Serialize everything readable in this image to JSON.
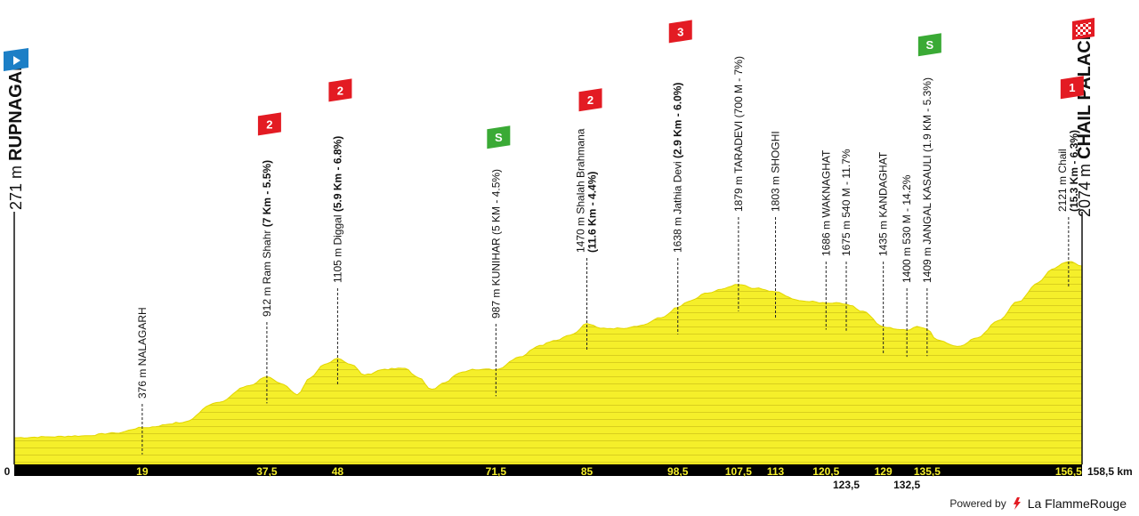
{
  "chart_data": {
    "type": "area",
    "xlim": [
      0,
      158.5
    ],
    "ylim": [
      0,
      2200
    ],
    "series": [
      {
        "x": [
          0,
          5,
          10,
          15,
          19,
          25,
          30,
          35,
          37.5,
          40,
          42,
          44,
          46,
          48,
          50,
          52,
          55,
          58,
          60,
          62,
          64,
          66,
          68,
          71.5,
          75,
          78,
          80,
          83,
          85,
          87,
          90,
          93,
          96,
          98.5,
          100,
          103,
          105,
          107.5,
          110,
          113,
          116,
          118,
          120.5,
          122,
          123.5,
          126,
          129,
          131,
          132.5,
          134,
          135.5,
          137,
          140,
          143,
          146,
          149,
          152,
          154,
          156.5,
          158.5
        ],
        "y": [
          271,
          280,
          290,
          320,
          376,
          430,
          640,
          820,
          912,
          830,
          720,
          900,
          1040,
          1105,
          1040,
          930,
          990,
          1000,
          900,
          780,
          850,
          950,
          990,
          987,
          1120,
          1240,
          1290,
          1360,
          1470,
          1420,
          1420,
          1450,
          1530,
          1638,
          1700,
          1790,
          1830,
          1879,
          1840,
          1803,
          1720,
          1700,
          1686,
          1690,
          1675,
          1600,
          1435,
          1410,
          1400,
          1440,
          1409,
          1300,
          1230,
          1320,
          1500,
          1700,
          1900,
          2040,
          2121,
          2074
        ]
      }
    ],
    "x_ticks_top": [
      "0",
      "19",
      "37,5",
      "48",
      "71,5",
      "85",
      "98,5",
      "107,5",
      "113",
      "120,5",
      "129",
      "135,5",
      "156,5"
    ],
    "x_ticks_bottom": [
      "123,5",
      "132,5"
    ],
    "x_end_label": "158,5 km",
    "start": {
      "alt": "271 m",
      "name": "RUPNAGAR",
      "km": 0
    },
    "finish": {
      "alt": "2074 m",
      "name": "CHAIL PALACE",
      "km": 158.5
    },
    "waypoints": [
      {
        "km": 19,
        "parts": [
          {
            "t": "376 m NALAGARH",
            "b": false
          }
        ]
      },
      {
        "km": 37.5,
        "parts": [
          {
            "t": "912 m Ram Shahr ",
            "b": false
          },
          {
            "t": "(7 Km - 5.5%)",
            "b": true
          }
        ],
        "climb": "2"
      },
      {
        "km": 48,
        "parts": [
          {
            "t": "1105 m Diggal ",
            "b": false
          },
          {
            "t": "(5.9 Km - 6.8%)",
            "b": true
          }
        ],
        "climb": "2"
      },
      {
        "km": 71.5,
        "parts": [
          {
            "t": "987 m KUNIHAR (5 KM - 4.5%)",
            "b": false
          }
        ],
        "sprint": "S"
      },
      {
        "km": 85,
        "parts": [
          {
            "t": "1470 m Shalah Brahmana",
            "b": false
          }
        ],
        "parts2": [
          {
            "t": "(11.6 Km - 4.4%)",
            "b": true
          }
        ],
        "climb": "2"
      },
      {
        "km": 98.5,
        "parts": [
          {
            "t": "1638 m Jathia Devi ",
            "b": false
          },
          {
            "t": "(2.9 Km - 6.0%)",
            "b": true
          }
        ],
        "climb": "3"
      },
      {
        "km": 107.5,
        "parts": [
          {
            "t": "1879 m TARADEVI (700 M - 7%)",
            "b": false
          }
        ]
      },
      {
        "km": 113,
        "parts": [
          {
            "t": "1803 m SHOGHI",
            "b": false
          }
        ]
      },
      {
        "km": 120.5,
        "parts": [
          {
            "t": "1686 m WAKNAGHAT",
            "b": false
          }
        ]
      },
      {
        "km": 123.5,
        "parts": [
          {
            "t": "1675 m 540 M - 11.7%",
            "b": false
          }
        ]
      },
      {
        "km": 129,
        "parts": [
          {
            "t": "1435 m KANDAGHAT",
            "b": false
          }
        ]
      },
      {
        "km": 132.5,
        "parts": [
          {
            "t": "1400 m 530 M - 14.2%",
            "b": false
          }
        ]
      },
      {
        "km": 135.5,
        "parts": [
          {
            "t": "1409 m JANGAL KASAULI (1.9 KM - 5.3%)",
            "b": false
          }
        ],
        "sprint": "S"
      },
      {
        "km": 156.5,
        "parts": [
          {
            "t": "2121 m Chail",
            "b": false
          }
        ],
        "parts2": [
          {
            "t": "(15.3 Km - 6.3%)",
            "b": true
          }
        ],
        "climb": "1"
      }
    ],
    "colors": {
      "profile_fill": "#f5ef2a",
      "profile_stroke": "#e3d600",
      "stripe": "#d9cf1e",
      "climb_badge": "#e31b23",
      "sprint_badge": "#3aaa35",
      "start_flag": "#1c7fc6",
      "axis_bar": "#000000"
    }
  },
  "footer": {
    "powered_by": "Powered by",
    "brand": "La FlammeRouge"
  }
}
